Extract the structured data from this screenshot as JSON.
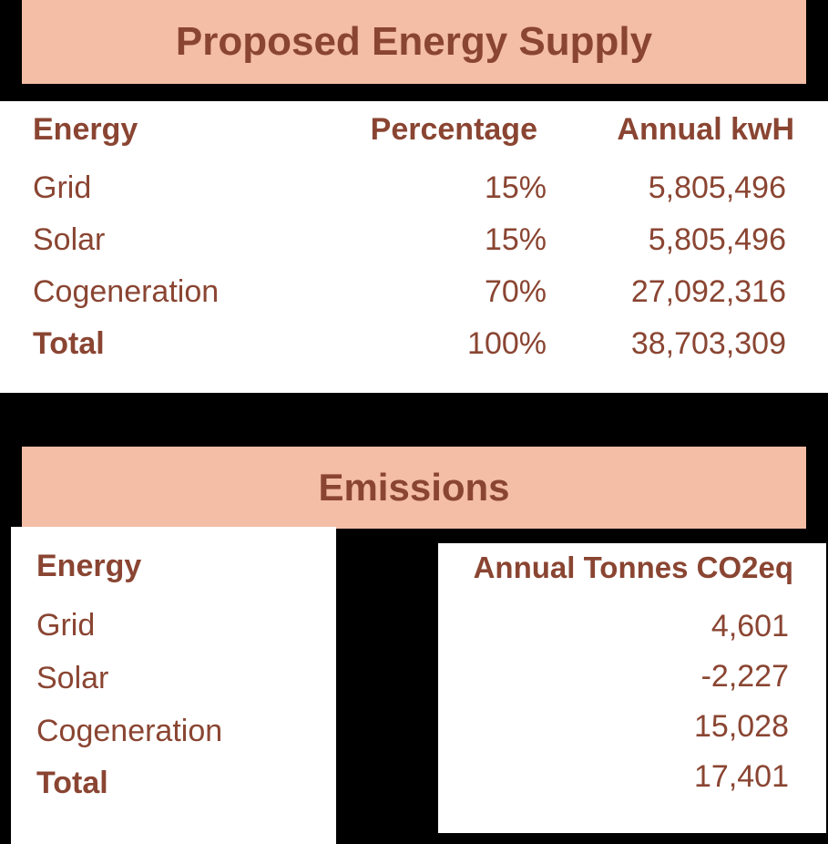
{
  "supply": {
    "title": "Proposed Energy Supply",
    "headers": {
      "energy": "Energy",
      "percentage": "Percentage",
      "annual": "Annual kwH"
    },
    "rows": [
      {
        "energy": "Grid",
        "percentage": "15%",
        "annual": "5,805,496"
      },
      {
        "energy": "Solar",
        "percentage": "15%",
        "annual": "5,805,496"
      },
      {
        "energy": "Cogeneration",
        "percentage": "70%",
        "annual": "27,092,316"
      },
      {
        "energy": "Total",
        "percentage": "100%",
        "annual": "38,703,309"
      }
    ]
  },
  "emissions": {
    "title": "Emissions",
    "headers": {
      "energy": "Energy",
      "annual": "Annual Tonnes CO2eq"
    },
    "rows": [
      {
        "energy": "Grid",
        "annual": "4,601"
      },
      {
        "energy": "Solar",
        "annual": "-2,227"
      },
      {
        "energy": "Cogeneration",
        "annual": "15,028"
      },
      {
        "energy": "Total",
        "annual": "17,401"
      }
    ]
  },
  "colors": {
    "banner": "#f4bda6",
    "text": "#8a4532",
    "background": "#000000",
    "panel": "#ffffff"
  }
}
